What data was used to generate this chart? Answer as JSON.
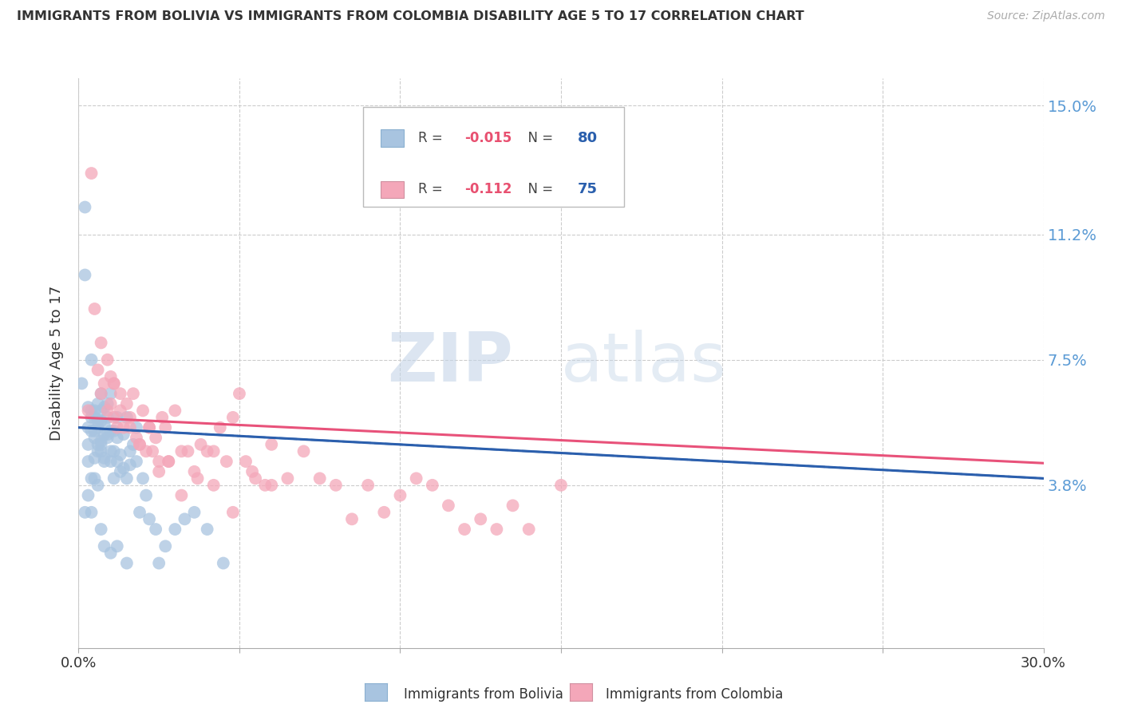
{
  "title": "IMMIGRANTS FROM BOLIVIA VS IMMIGRANTS FROM COLOMBIA DISABILITY AGE 5 TO 17 CORRELATION CHART",
  "source": "Source: ZipAtlas.com",
  "ylabel": "Disability Age 5 to 17",
  "xlim": [
    0.0,
    0.3
  ],
  "ylim": [
    -0.01,
    0.158
  ],
  "yticks": [
    0.038,
    0.075,
    0.112,
    0.15
  ],
  "ytick_labels": [
    "3.8%",
    "7.5%",
    "11.2%",
    "15.0%"
  ],
  "xticks": [
    0.0,
    0.05,
    0.1,
    0.15,
    0.2,
    0.25,
    0.3
  ],
  "xtick_labels": [
    "0.0%",
    "",
    "",
    "",
    "",
    "",
    "30.0%"
  ],
  "bolivia_R": -0.015,
  "bolivia_N": 80,
  "colombia_R": -0.112,
  "colombia_N": 75,
  "bolivia_color": "#a8c4e0",
  "colombia_color": "#f4a7b9",
  "bolivia_line_color": "#2b5fad",
  "colombia_line_color": "#e8527a",
  "watermark_zip": "ZIP",
  "watermark_atlas": "atlas",
  "bolivia_x": [
    0.001,
    0.002,
    0.002,
    0.003,
    0.003,
    0.003,
    0.003,
    0.004,
    0.004,
    0.004,
    0.004,
    0.004,
    0.005,
    0.005,
    0.005,
    0.005,
    0.005,
    0.006,
    0.006,
    0.006,
    0.006,
    0.006,
    0.007,
    0.007,
    0.007,
    0.007,
    0.007,
    0.007,
    0.008,
    0.008,
    0.008,
    0.008,
    0.008,
    0.009,
    0.009,
    0.009,
    0.009,
    0.01,
    0.01,
    0.01,
    0.01,
    0.011,
    0.011,
    0.011,
    0.012,
    0.012,
    0.012,
    0.013,
    0.013,
    0.014,
    0.014,
    0.015,
    0.015,
    0.016,
    0.016,
    0.017,
    0.018,
    0.018,
    0.019,
    0.02,
    0.021,
    0.022,
    0.024,
    0.025,
    0.027,
    0.03,
    0.033,
    0.036,
    0.04,
    0.045,
    0.002,
    0.003,
    0.004,
    0.005,
    0.006,
    0.007,
    0.008,
    0.01,
    0.012,
    0.015
  ],
  "bolivia_y": [
    0.068,
    0.12,
    0.1,
    0.055,
    0.061,
    0.05,
    0.045,
    0.075,
    0.058,
    0.054,
    0.06,
    0.04,
    0.058,
    0.054,
    0.052,
    0.046,
    0.06,
    0.055,
    0.05,
    0.062,
    0.048,
    0.057,
    0.06,
    0.048,
    0.051,
    0.065,
    0.057,
    0.05,
    0.053,
    0.045,
    0.046,
    0.061,
    0.056,
    0.052,
    0.062,
    0.053,
    0.058,
    0.045,
    0.048,
    0.054,
    0.065,
    0.048,
    0.054,
    0.04,
    0.052,
    0.058,
    0.045,
    0.042,
    0.047,
    0.043,
    0.053,
    0.04,
    0.058,
    0.044,
    0.048,
    0.05,
    0.045,
    0.055,
    0.03,
    0.04,
    0.035,
    0.028,
    0.025,
    0.015,
    0.02,
    0.025,
    0.028,
    0.03,
    0.025,
    0.015,
    0.03,
    0.035,
    0.03,
    0.04,
    0.038,
    0.025,
    0.02,
    0.018,
    0.02,
    0.015
  ],
  "colombia_x": [
    0.003,
    0.004,
    0.005,
    0.006,
    0.007,
    0.008,
    0.009,
    0.01,
    0.01,
    0.011,
    0.011,
    0.012,
    0.013,
    0.014,
    0.015,
    0.016,
    0.017,
    0.018,
    0.019,
    0.02,
    0.021,
    0.022,
    0.023,
    0.024,
    0.025,
    0.026,
    0.027,
    0.028,
    0.03,
    0.032,
    0.034,
    0.036,
    0.038,
    0.04,
    0.042,
    0.044,
    0.046,
    0.048,
    0.05,
    0.052,
    0.055,
    0.058,
    0.06,
    0.065,
    0.07,
    0.075,
    0.08,
    0.085,
    0.09,
    0.095,
    0.1,
    0.105,
    0.11,
    0.115,
    0.12,
    0.125,
    0.13,
    0.135,
    0.14,
    0.15,
    0.007,
    0.009,
    0.011,
    0.013,
    0.016,
    0.019,
    0.022,
    0.025,
    0.028,
    0.032,
    0.037,
    0.042,
    0.048,
    0.054,
    0.06
  ],
  "colombia_y": [
    0.06,
    0.13,
    0.09,
    0.072,
    0.065,
    0.068,
    0.06,
    0.07,
    0.062,
    0.058,
    0.068,
    0.055,
    0.06,
    0.055,
    0.062,
    0.058,
    0.065,
    0.052,
    0.05,
    0.06,
    0.048,
    0.055,
    0.048,
    0.052,
    0.042,
    0.058,
    0.055,
    0.045,
    0.06,
    0.048,
    0.048,
    0.042,
    0.05,
    0.048,
    0.048,
    0.055,
    0.045,
    0.058,
    0.065,
    0.045,
    0.04,
    0.038,
    0.05,
    0.04,
    0.048,
    0.04,
    0.038,
    0.028,
    0.038,
    0.03,
    0.035,
    0.04,
    0.038,
    0.032,
    0.025,
    0.028,
    0.025,
    0.032,
    0.025,
    0.038,
    0.08,
    0.075,
    0.068,
    0.065,
    0.055,
    0.05,
    0.055,
    0.045,
    0.045,
    0.035,
    0.04,
    0.038,
    0.03,
    0.042,
    0.038
  ]
}
